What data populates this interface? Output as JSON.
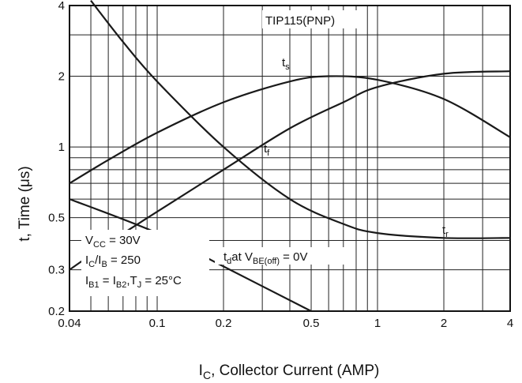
{
  "chart_data": {
    "type": "line",
    "title": "",
    "xlabel": "I",
    "xlabel_sub": "C",
    "xlabel_rest": ", Collector Current (AMP)",
    "ylabel": "t, Time (μs)",
    "xscale": "log",
    "yscale": "log",
    "xlim": [
      0.04,
      4
    ],
    "ylim": [
      0.2,
      4
    ],
    "grid": true,
    "xticks": [
      0.04,
      0.1,
      0.2,
      0.5,
      1,
      2,
      4
    ],
    "xtick_labels": [
      "0.04",
      "0.1",
      "0.2",
      "0.5",
      "1",
      "2",
      "4"
    ],
    "yticks": [
      0.2,
      0.3,
      0.5,
      1,
      2,
      4
    ],
    "ytick_labels": [
      "0.2",
      "0.3",
      "0.5",
      "1",
      "2",
      "4"
    ],
    "series": [
      {
        "name": "ts",
        "x": [
          0.04,
          0.06,
          0.1,
          0.2,
          0.4,
          0.6,
          1,
          2,
          4
        ],
        "y": [
          0.7,
          0.88,
          1.15,
          1.55,
          1.9,
          2.0,
          1.93,
          1.6,
          1.1
        ]
      },
      {
        "name": "tf",
        "x": [
          0.04,
          0.06,
          0.1,
          0.2,
          0.4,
          0.7,
          1,
          2,
          4
        ],
        "y": [
          0.3,
          0.39,
          0.53,
          0.8,
          1.2,
          1.55,
          1.8,
          2.05,
          2.1
        ]
      },
      {
        "name": "tr",
        "x": [
          0.05,
          0.07,
          0.1,
          0.2,
          0.4,
          0.7,
          1,
          2,
          4
        ],
        "y": [
          4.2,
          2.8,
          1.9,
          1.0,
          0.6,
          0.47,
          0.43,
          0.41,
          0.41
        ]
      },
      {
        "name": "td at VBE(off) = 0V",
        "x": [
          0.04,
          0.1,
          0.2,
          0.5
        ],
        "y": [
          0.6,
          0.43,
          0.31,
          0.2
        ]
      }
    ],
    "annotations": {
      "part": "TIP115(PNP)",
      "ts": {
        "main": "t",
        "sub": "s"
      },
      "tf": {
        "main": "t",
        "sub": "f"
      },
      "tr": {
        "main": "t",
        "sub": "r"
      },
      "td": {
        "main": "t",
        "sub": "d",
        "mid": "at V",
        "sub2": "BE(off)",
        "tail": " = 0V"
      },
      "cond1": {
        "main": "V",
        "sub": "CC",
        "tail": " = 30V"
      },
      "cond2": {
        "main": "I",
        "sub": "C",
        "mid": "/I",
        "sub2": "B",
        "tail": " = 250"
      },
      "cond3": {
        "main": "I",
        "sub": "B1",
        "mid": " = I",
        "sub2": "B2",
        "tail": ",T",
        "sub3": "J",
        "tail2": " = 25°C"
      }
    }
  }
}
